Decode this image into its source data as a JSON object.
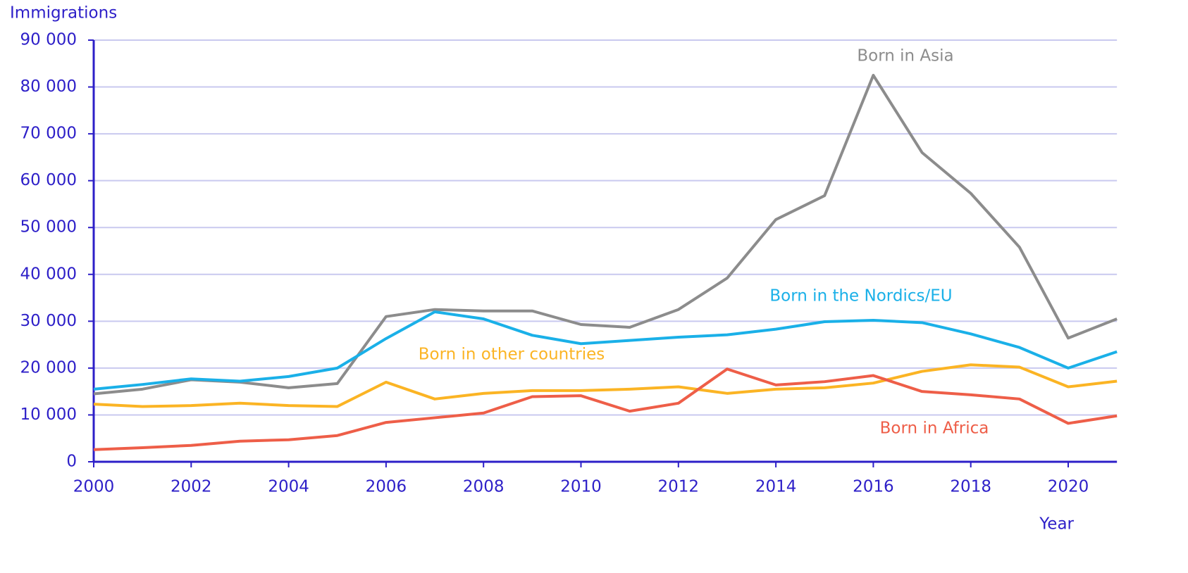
{
  "chart_data": {
    "type": "line",
    "ylabel": "Immigrations",
    "xlabel": "Year",
    "x": [
      2000,
      2001,
      2002,
      2003,
      2004,
      2005,
      2006,
      2007,
      2008,
      2009,
      2010,
      2011,
      2012,
      2013,
      2014,
      2015,
      2016,
      2017,
      2018,
      2019,
      2020,
      2021
    ],
    "series": [
      {
        "name": "Born in Asia",
        "color": "#8c8c8c",
        "values": [
          14500,
          15500,
          17500,
          17000,
          15800,
          16700,
          31000,
          32500,
          32200,
          32200,
          29300,
          28700,
          32500,
          39200,
          51700,
          56800,
          82500,
          66000,
          57300,
          45800,
          26400,
          30500
        ]
      },
      {
        "name": "Born in the Nordics/EU",
        "color": "#1ab0e8",
        "values": [
          15500,
          16500,
          17700,
          17200,
          18200,
          20000,
          26300,
          32000,
          30500,
          27000,
          25200,
          25900,
          26600,
          27100,
          28300,
          29900,
          30200,
          29700,
          27300,
          24400,
          20000,
          23500
        ]
      },
      {
        "name": "Born in other countries",
        "color": "#fbb424",
        "values": [
          12300,
          11800,
          12000,
          12500,
          12000,
          11800,
          17000,
          13400,
          14600,
          15200,
          15200,
          15500,
          16000,
          14600,
          15500,
          15800,
          16800,
          19300,
          20700,
          20200,
          16000,
          17200
        ]
      },
      {
        "name": "Born in Africa",
        "color": "#ee5e48",
        "values": [
          2600,
          3000,
          3500,
          4400,
          4700,
          5600,
          8400,
          9400,
          10400,
          13900,
          14100,
          10800,
          12500,
          19800,
          16400,
          17100,
          18400,
          15000,
          14300,
          13400,
          8200,
          9800
        ]
      }
    ],
    "xlim": [
      2000,
      2021
    ],
    "xticks": [
      2000,
      2002,
      2004,
      2006,
      2008,
      2010,
      2012,
      2014,
      2016,
      2018,
      2020
    ],
    "ylim": [
      0,
      90000
    ],
    "yticks": [
      0,
      {
        "value": 10000,
        "label": "10 000"
      },
      {
        "value": 20000,
        "label": "20 000"
      },
      {
        "value": 30000,
        "label": "30 000"
      },
      {
        "value": 40000,
        "label": "40 000"
      },
      {
        "value": 50000,
        "label": "50 000"
      },
      {
        "value": 60000,
        "label": "60 000"
      },
      {
        "value": 70000,
        "label": "70 000"
      },
      {
        "value": 80000,
        "label": "80 000"
      },
      {
        "value": 90000,
        "label": "90 000"
      }
    ],
    "grid": true
  }
}
